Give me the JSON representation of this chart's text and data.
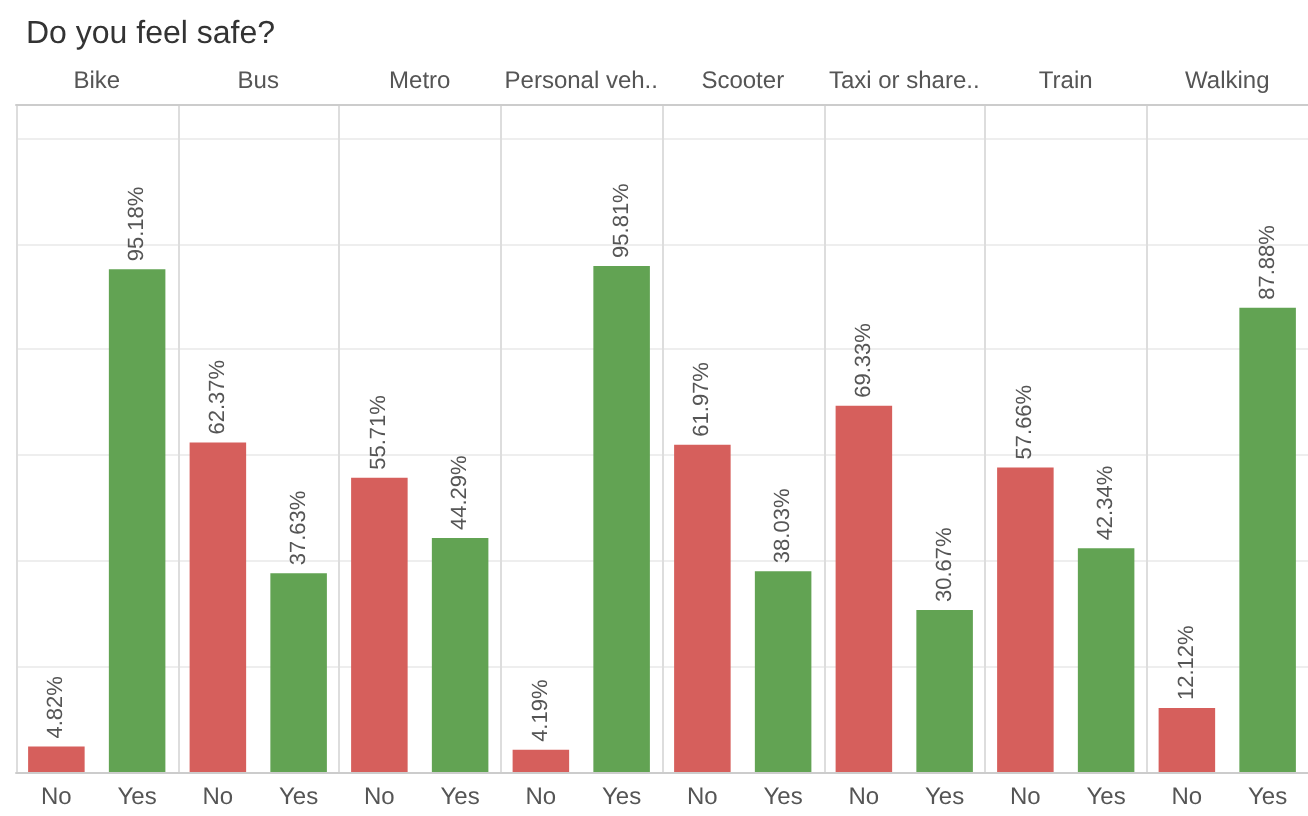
{
  "chart_data": {
    "type": "bar",
    "title": "Do you feel safe?",
    "grid": "y",
    "tick_labels": "x",
    "categories": [
      "No",
      "Yes",
      "No",
      "Yes",
      "No",
      "Yes",
      "No",
      "Yes",
      "No",
      "Yes",
      "No",
      "Yes",
      "No",
      "Yes",
      "No",
      "Yes"
    ],
    "values": [
      4.82,
      95.18,
      62.37,
      37.63,
      55.71,
      44.29,
      4.19,
      95.81,
      61.97,
      38.03,
      69.33,
      30.67,
      57.66,
      42.34,
      12.12,
      87.88
    ],
    "colors": [
      "#d65f5c",
      "#62a353",
      "#d65f5c",
      "#62a353",
      "#d65f5c",
      "#62a353",
      "#d65f5c",
      "#62a353",
      "#d65f5c",
      "#62a353",
      "#d65f5c",
      "#62a353",
      "#d65f5c",
      "#62a353",
      "#d65f5c",
      "#62a353"
    ],
    "value_labels": [
      "4.82%",
      "95.18%",
      "62.37%",
      "37.63%",
      "55.71%",
      "44.29%",
      "4.19%",
      "95.81%",
      "61.97%",
      "38.03%",
      "69.33%",
      "30.67%",
      "57.66%",
      "42.34%",
      "12.12%",
      "87.88%"
    ],
    "annotations": [
      "Bike",
      "Bus",
      "Metro",
      "Personal veh..",
      "Scooter",
      "Taxi or share..",
      "Train",
      "Walking"
    ]
  }
}
